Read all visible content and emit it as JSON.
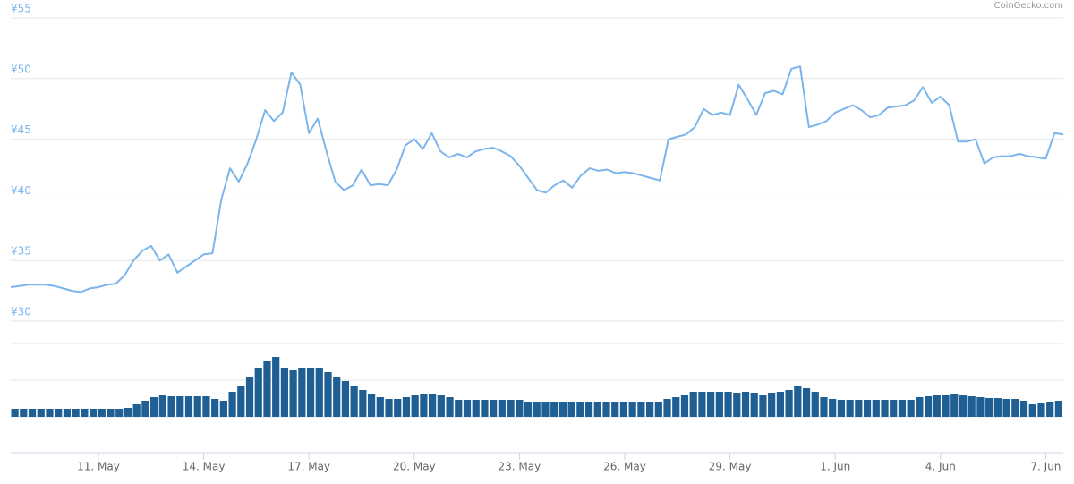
{
  "chart_data": {
    "type": "line",
    "credit": "CoinGecko.com",
    "xlim": [
      0,
      120
    ],
    "xticks": [
      {
        "value": 10,
        "label": "11. May"
      },
      {
        "value": 22,
        "label": "14. May"
      },
      {
        "value": 34,
        "label": "17. May"
      },
      {
        "value": 46,
        "label": "20. May"
      },
      {
        "value": 58,
        "label": "23. May"
      },
      {
        "value": 70,
        "label": "26. May"
      },
      {
        "value": 82,
        "label": "29. May"
      },
      {
        "value": 94,
        "label": "1. Jun"
      },
      {
        "value": 106,
        "label": "4. Jun"
      },
      {
        "value": 118,
        "label": "7. Jun"
      }
    ],
    "ylim": [
      30,
      55
    ],
    "yticks": [
      {
        "value": 30,
        "label": "¥30"
      },
      {
        "value": 35,
        "label": "¥35"
      },
      {
        "value": 40,
        "label": "¥40"
      },
      {
        "value": 45,
        "label": "¥45"
      },
      {
        "value": 50,
        "label": "¥50"
      },
      {
        "value": 55,
        "label": "¥55"
      }
    ],
    "y2lim": [
      0,
      100
    ],
    "grid": true,
    "series": [
      {
        "color": "#7cb5ec",
        "values": [
          32.8,
          32.9,
          33.0,
          33.0,
          33.0,
          32.9,
          32.7,
          32.5,
          32.4,
          32.7,
          32.8,
          33.0,
          33.1,
          33.8,
          35.0,
          35.8,
          36.2,
          35.0,
          35.5,
          34.0,
          34.5,
          35.0,
          35.5,
          35.6,
          40.0,
          42.6,
          41.5,
          43.0,
          45.0,
          47.4,
          46.5,
          47.2,
          50.5,
          49.5,
          45.5,
          46.7,
          44.0,
          41.5,
          40.8,
          41.2,
          42.5,
          41.2,
          41.3,
          41.2,
          42.5,
          44.5,
          45.0,
          44.2,
          45.5,
          44.0,
          43.5,
          43.8,
          43.5,
          44.0,
          44.2,
          44.3,
          44.0,
          43.6,
          42.8,
          41.8,
          40.8,
          40.6,
          41.2,
          41.6,
          41.0,
          42.0,
          42.6,
          42.4,
          42.5,
          42.2,
          42.3,
          42.2,
          42.0,
          41.8,
          41.6,
          45.0,
          45.2,
          45.4,
          46.0,
          47.5,
          47.0,
          47.2,
          47.0,
          49.5,
          48.3,
          47.0,
          48.8,
          49.0,
          48.7,
          50.8,
          51.0,
          46.0,
          46.2,
          46.5,
          47.2,
          47.5,
          47.8,
          47.4,
          46.8,
          47.0,
          47.6,
          47.7,
          47.8,
          48.2,
          49.3,
          48.0,
          48.5,
          47.8,
          44.8,
          44.8,
          45.0,
          43.0,
          43.5,
          43.6,
          43.6,
          43.8,
          43.6,
          43.5,
          43.4,
          45.5,
          45.4
        ]
      },
      {
        "type": "bar",
        "axis": "y2",
        "color": "#1f5f94",
        "values": [
          9,
          9,
          9,
          9,
          9,
          9,
          9,
          9,
          9,
          9,
          9,
          9,
          9,
          10,
          14,
          18,
          22,
          24,
          23,
          23,
          23,
          23,
          23,
          20,
          18,
          28,
          35,
          45,
          55,
          62,
          67,
          55,
          52,
          55,
          55,
          55,
          50,
          45,
          40,
          35,
          30,
          26,
          22,
          20,
          20,
          22,
          24,
          26,
          26,
          24,
          22,
          19,
          19,
          19,
          19,
          19,
          19,
          19,
          19,
          17,
          17,
          17,
          17,
          17,
          17,
          17,
          17,
          17,
          17,
          17,
          17,
          17,
          17,
          17,
          17,
          20,
          22,
          24,
          28,
          28,
          28,
          28,
          28,
          27,
          28,
          27,
          25,
          27,
          28,
          30,
          34,
          32,
          28,
          22,
          20,
          19,
          19,
          19,
          19,
          19,
          19,
          19,
          19,
          19,
          22,
          23,
          24,
          25,
          26,
          24,
          23,
          22,
          21,
          21,
          20,
          20,
          18,
          14,
          16,
          17,
          18
        ]
      }
    ]
  }
}
